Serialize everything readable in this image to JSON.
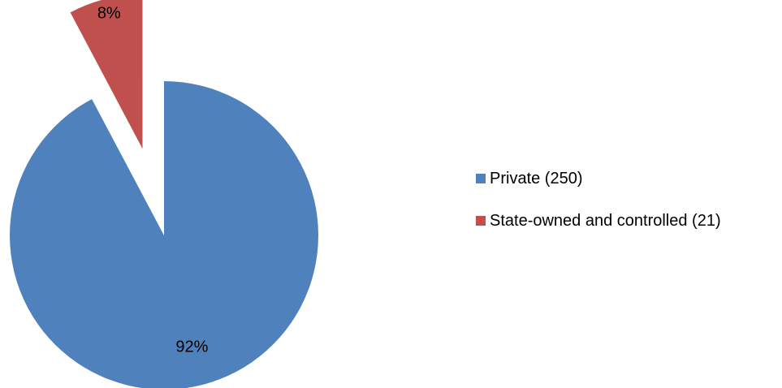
{
  "chart_data": {
    "type": "pie",
    "title": "",
    "legend_position": "right",
    "slices": [
      {
        "name": "Private (250)",
        "value": 250,
        "percent_label": "92%",
        "color": "#4F81BD",
        "exploded": false
      },
      {
        "name": "State-owned and controlled (21)",
        "value": 21,
        "percent_label": "8%",
        "color": "#C0504D",
        "exploded": true
      }
    ]
  }
}
